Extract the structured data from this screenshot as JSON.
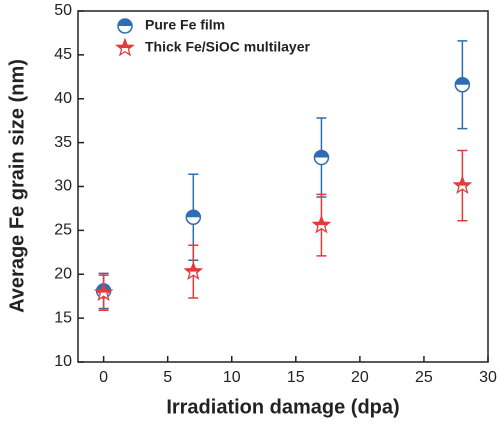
{
  "chart_data": {
    "type": "scatter",
    "x_label": "Irradiation damage (dpa)",
    "y_label": "Average Fe grain size (nm)",
    "xlim": [
      -2,
      30
    ],
    "xticks": [
      0,
      5,
      10,
      15,
      20,
      25,
      30
    ],
    "ylim": [
      10,
      50
    ],
    "yticks": [
      10,
      15,
      20,
      25,
      30,
      35,
      40,
      45,
      50
    ],
    "legend": "upper left",
    "series": [
      {
        "name": "Pure Fe film",
        "color": "#2e6db4",
        "marker": "circle",
        "x": [
          0,
          7,
          17,
          28
        ],
        "values": [
          18.1,
          26.5,
          33.3,
          41.6
        ],
        "errors": [
          2,
          4.9,
          4.5,
          5
        ]
      },
      {
        "name": "Thick Fe/SiOC multilayer",
        "color": "#e03c3c",
        "marker": "star",
        "x": [
          0,
          7,
          17,
          28
        ],
        "values": [
          17.9,
          20.3,
          25.6,
          30.1
        ],
        "errors": [
          2,
          3,
          3.5,
          4
        ]
      }
    ]
  }
}
